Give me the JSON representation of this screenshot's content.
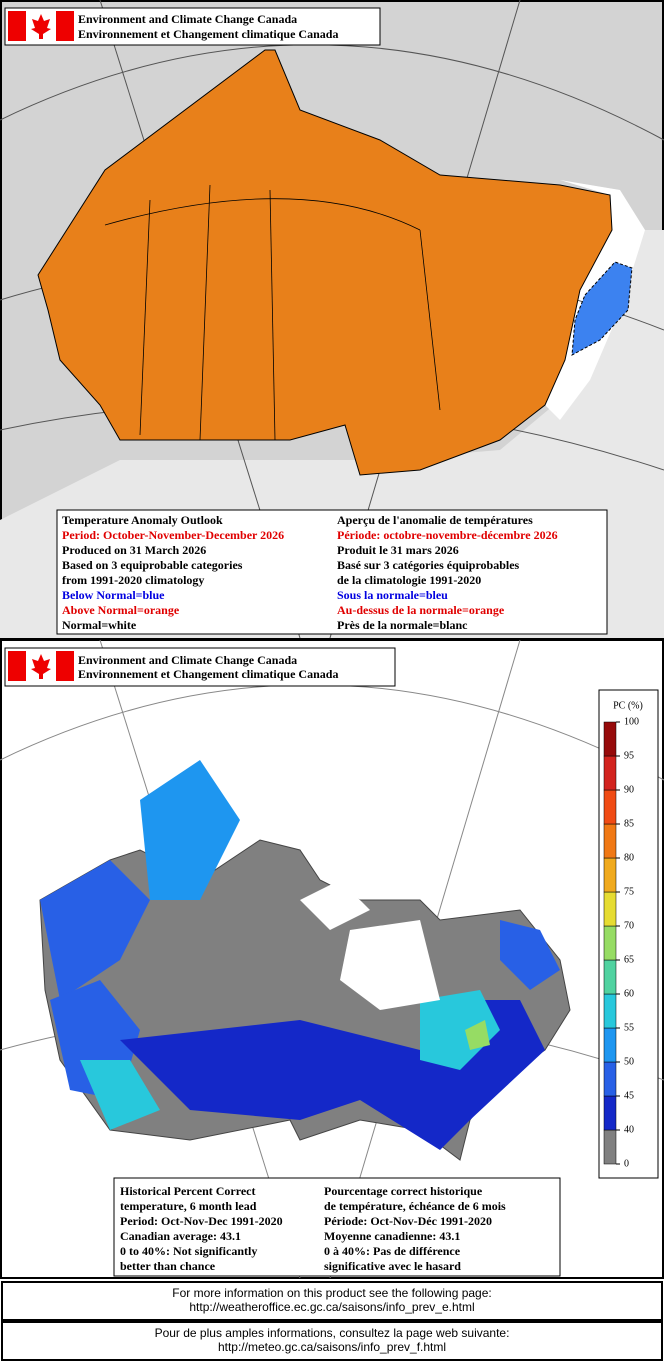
{
  "top_panel": {
    "header": [
      "Environment and Climate Change Canada",
      "Environnement et Changement climatique Canada"
    ],
    "legend_en": [
      "Temperature Anomaly Outlook",
      "Period: October-November-December 2026",
      "Produced on 31 March 2026",
      "Based on 3 equiprobable categories",
      "from 1991-2020 climatology",
      "Below Normal=blue",
      "Above Normal=orange",
      "Normal=white"
    ],
    "legend_fr": [
      "Aperçu de l'anomalie de températures",
      "Période: octobre-novembre-décembre 2026",
      "Produit le 31 mars 2026",
      "Basé sur 3 catégories équiprobables",
      "de la climatologie 1991-2020",
      "Sous la normale=bleu",
      "Au-dessus de la normale=orange",
      "Près de la normale=blanc"
    ]
  },
  "bottom_panel": {
    "header": [
      "Environment and Climate Change Canada",
      "Environnement et Changement climatique Canada"
    ],
    "colorbar": {
      "title": "PC (%)",
      "ticks": [
        0,
        40,
        45,
        50,
        55,
        60,
        65,
        70,
        75,
        80,
        85,
        90,
        95,
        100
      ],
      "colors": [
        "#808080",
        "#1428c8",
        "#2860e6",
        "#1e96f0",
        "#28c8dc",
        "#50d2a0",
        "#96dc64",
        "#e6dc32",
        "#f0aa1e",
        "#f07814",
        "#f04b14",
        "#d2231e",
        "#960a0a"
      ]
    },
    "legend_en": [
      "Historical Percent Correct",
      "temperature, 6 month lead",
      "Period: Oct-Nov-Dec 1991-2020",
      "Canadian average: 43.1",
      "0 to 40%: Not significantly",
      "better than chance"
    ],
    "legend_fr": [
      "Pourcentage correct historique",
      "de température, échéance de 6 mois",
      "Période: Oct-Nov-Déc 1991-2020",
      "Moyenne canadienne: 43.1",
      "0 à 40%: Pas de différence",
      "significative avec le hasard"
    ]
  },
  "footer": [
    [
      "For more information on this product see the following page:",
      "http://weatheroffice.ec.gc.ca/saisons/info_prev_e.html"
    ],
    [
      "Pour de plus amples informations, consultez la page web suivante:",
      "http://meteo.gc.ca/saisons/info_prev_f.html"
    ]
  ]
}
